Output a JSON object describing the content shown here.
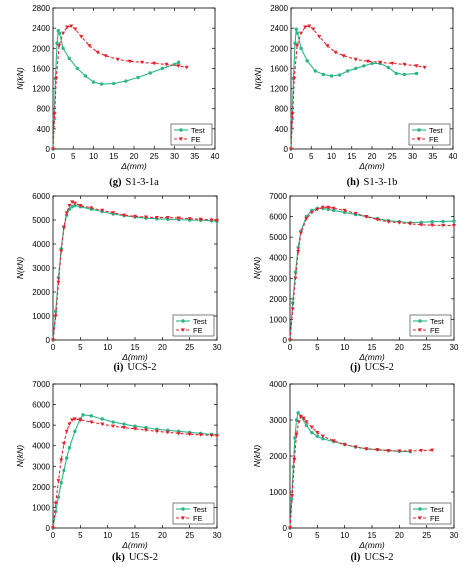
{
  "figure": {
    "colors": {
      "test": "#2ab58a",
      "fe": "#e8202a"
    }
  },
  "chart_data": [
    {
      "type": "line",
      "panel_label": "(g)",
      "caption_text": "S1-3-1a",
      "xlabel": "Δ(mm)",
      "ylabel": "N(kN)",
      "xlim": [
        0,
        40
      ],
      "ylim": [
        0,
        2800
      ],
      "xticks": [
        0,
        5,
        10,
        15,
        20,
        25,
        30,
        35,
        40
      ],
      "yticks": [
        0,
        400,
        800,
        1200,
        1600,
        2000,
        2400,
        2800
      ],
      "legend_position": "bottom-right",
      "series": [
        {
          "name": "Test",
          "x": [
            0,
            0.3,
            0.6,
            1.0,
            1.3,
            1.6,
            2.5,
            4,
            6,
            8,
            10,
            12,
            15,
            18,
            21,
            24,
            27,
            30,
            31
          ],
          "y": [
            0,
            600,
            1400,
            2100,
            2350,
            2300,
            2000,
            1800,
            1600,
            1450,
            1330,
            1290,
            1300,
            1350,
            1420,
            1510,
            1600,
            1680,
            1720
          ]
        },
        {
          "name": "FE",
          "x": [
            0,
            0.4,
            0.8,
            1.5,
            2.5,
            3.5,
            4.5,
            5.5,
            7,
            9,
            11,
            13,
            16,
            19,
            22,
            25,
            28,
            31,
            33
          ],
          "y": [
            0,
            700,
            1400,
            2050,
            2300,
            2420,
            2440,
            2380,
            2230,
            2050,
            1920,
            1850,
            1780,
            1740,
            1720,
            1700,
            1680,
            1650,
            1620
          ]
        }
      ]
    },
    {
      "type": "line",
      "panel_label": "(h)",
      "caption_text": "S1-3-1b",
      "xlabel": "Δ(mm)",
      "ylabel": "N(kN)",
      "xlim": [
        0,
        40
      ],
      "ylim": [
        0,
        2800
      ],
      "xticks": [
        0,
        5,
        10,
        15,
        20,
        25,
        30,
        35,
        40
      ],
      "yticks": [
        0,
        400,
        800,
        1200,
        1600,
        2000,
        2400,
        2800
      ],
      "legend_position": "bottom-right",
      "series": [
        {
          "name": "Test",
          "x": [
            0,
            0.3,
            0.6,
            1.0,
            1.3,
            1.6,
            2.5,
            4,
            6,
            8,
            10,
            12,
            14,
            16,
            18,
            20,
            22,
            24,
            26,
            28,
            31
          ],
          "y": [
            0,
            600,
            1400,
            2100,
            2380,
            2300,
            2000,
            1750,
            1550,
            1480,
            1450,
            1470,
            1550,
            1600,
            1650,
            1700,
            1700,
            1620,
            1500,
            1480,
            1500
          ]
        },
        {
          "name": "FE",
          "x": [
            0,
            0.4,
            0.8,
            1.5,
            2.5,
            3.5,
            4.5,
            5.5,
            7,
            9,
            11,
            13,
            16,
            19,
            22,
            25,
            28,
            31,
            33
          ],
          "y": [
            0,
            700,
            1400,
            2050,
            2300,
            2420,
            2440,
            2380,
            2230,
            2050,
            1920,
            1850,
            1780,
            1740,
            1720,
            1700,
            1680,
            1650,
            1620
          ]
        }
      ]
    },
    {
      "type": "line",
      "panel_label": "(i)",
      "caption_text": "UCS-2",
      "xlabel": "Δ(mm)",
      "ylabel": "N(kN)",
      "xlim": [
        0,
        30
      ],
      "ylim": [
        0,
        6000
      ],
      "xticks": [
        0,
        5,
        10,
        15,
        20,
        25,
        30
      ],
      "yticks": [
        0,
        1000,
        2000,
        3000,
        4000,
        5000,
        6000
      ],
      "legend_position": "bottom-right",
      "series": [
        {
          "name": "Test",
          "x": [
            0,
            0.5,
            1.0,
            1.5,
            2.0,
            2.5,
            3.0,
            3.5,
            4,
            5,
            7,
            9,
            11,
            13,
            15,
            17,
            19,
            21,
            23,
            25,
            27,
            29,
            30
          ],
          "y": [
            0,
            1200,
            2600,
            3800,
            4700,
            5200,
            5450,
            5550,
            5600,
            5550,
            5450,
            5350,
            5250,
            5180,
            5120,
            5080,
            5050,
            5030,
            5010,
            5000,
            4990,
            4970,
            4950
          ]
        },
        {
          "name": "FE",
          "x": [
            0,
            0.5,
            1.0,
            1.5,
            2.0,
            2.5,
            3.0,
            3.5,
            4,
            5,
            7,
            9,
            11,
            13,
            15,
            17,
            19,
            21,
            23,
            25,
            27,
            29,
            30
          ],
          "y": [
            0,
            1000,
            2400,
            3700,
            4700,
            5300,
            5600,
            5750,
            5700,
            5600,
            5500,
            5400,
            5300,
            5200,
            5150,
            5120,
            5100,
            5100,
            5080,
            5050,
            5030,
            5000,
            4980
          ]
        }
      ]
    },
    {
      "type": "line",
      "panel_label": "(j)",
      "caption_text": "UCS-2",
      "xlabel": "Δ(mm)",
      "ylabel": "N(kN)",
      "xlim": [
        0,
        30
      ],
      "ylim": [
        0,
        7000
      ],
      "xticks": [
        0,
        5,
        10,
        15,
        20,
        25,
        30
      ],
      "yticks": [
        0,
        1000,
        2000,
        3000,
        4000,
        5000,
        6000,
        7000
      ],
      "legend_position": "bottom-right",
      "series": [
        {
          "name": "Test",
          "x": [
            0,
            0.5,
            1.0,
            1.5,
            2.0,
            3,
            4,
            5,
            6,
            7,
            8,
            10,
            12,
            14,
            16,
            18,
            20,
            22,
            24,
            26,
            28,
            30
          ],
          "y": [
            0,
            1800,
            3300,
            4500,
            5300,
            6000,
            6300,
            6400,
            6400,
            6350,
            6300,
            6200,
            6100,
            6000,
            5900,
            5800,
            5750,
            5700,
            5720,
            5750,
            5760,
            5780
          ]
        },
        {
          "name": "FE",
          "x": [
            0,
            0.5,
            1.0,
            1.5,
            2.0,
            3,
            4,
            5,
            6,
            7,
            8,
            10,
            12,
            14,
            16,
            18,
            20,
            22,
            24,
            26,
            28,
            30
          ],
          "y": [
            0,
            1500,
            3000,
            4300,
            5200,
            5900,
            6200,
            6350,
            6450,
            6450,
            6400,
            6300,
            6150,
            6000,
            5850,
            5750,
            5700,
            5650,
            5600,
            5580,
            5570,
            5560
          ]
        }
      ]
    },
    {
      "type": "line",
      "panel_label": "(k)",
      "caption_text": "UCS-2",
      "xlabel": "Δ(mm)",
      "ylabel": "N(kN)",
      "xlim": [
        0,
        30
      ],
      "ylim": [
        0,
        7000
      ],
      "xticks": [
        0,
        5,
        10,
        15,
        20,
        25,
        30
      ],
      "yticks": [
        0,
        1000,
        2000,
        3000,
        4000,
        5000,
        6000,
        7000
      ],
      "legend_position": "bottom-right",
      "series": [
        {
          "name": "Test",
          "x": [
            0,
            0.5,
            1.0,
            1.5,
            2.0,
            2.5,
            3,
            4,
            5,
            5.5,
            7,
            9,
            11,
            13,
            15,
            17,
            19,
            21,
            23,
            25,
            27,
            29,
            30
          ],
          "y": [
            0,
            800,
            1500,
            2200,
            2800,
            3400,
            3900,
            4700,
            5300,
            5500,
            5450,
            5300,
            5150,
            5050,
            4950,
            4880,
            4800,
            4750,
            4700,
            4650,
            4600,
            4550,
            4520
          ]
        },
        {
          "name": "FE",
          "x": [
            0,
            0.5,
            1.0,
            1.5,
            2.0,
            2.5,
            3,
            3.5,
            4,
            5,
            7,
            9,
            11,
            13,
            15,
            17,
            19,
            21,
            23,
            25,
            27,
            29,
            30
          ],
          "y": [
            0,
            1200,
            2300,
            3300,
            4100,
            4700,
            5050,
            5250,
            5300,
            5250,
            5150,
            5050,
            4950,
            4880,
            4820,
            4760,
            4700,
            4650,
            4600,
            4560,
            4530,
            4500,
            4480
          ]
        }
      ]
    },
    {
      "type": "line",
      "panel_label": "(l)",
      "caption_text": "UCS-2",
      "xlabel": "Δ(mm)",
      "ylabel": "N(kN)",
      "xlim": [
        0,
        30
      ],
      "ylim": [
        0,
        4000
      ],
      "xticks": [
        0,
        5,
        10,
        15,
        20,
        25,
        30
      ],
      "yticks": [
        0,
        1000,
        2000,
        3000,
        4000
      ],
      "legend_position": "bottom-right",
      "series": [
        {
          "name": "Test",
          "x": [
            0,
            0.3,
            0.6,
            0.9,
            1.2,
            1.5,
            2,
            3,
            4,
            5,
            6,
            8,
            10,
            12,
            14,
            16,
            18,
            20,
            22
          ],
          "y": [
            0,
            800,
            1700,
            2500,
            3000,
            3200,
            3100,
            2850,
            2650,
            2550,
            2480,
            2400,
            2320,
            2250,
            2200,
            2180,
            2150,
            2130,
            2120
          ]
        },
        {
          "name": "FE",
          "x": [
            0,
            0.4,
            0.8,
            1.2,
            1.6,
            2,
            2.5,
            3,
            4,
            5,
            6,
            8,
            10,
            12,
            14,
            16,
            18,
            20,
            22,
            24,
            26
          ],
          "y": [
            0,
            900,
            1900,
            2600,
            2950,
            3100,
            3050,
            2950,
            2800,
            2650,
            2550,
            2420,
            2320,
            2250,
            2200,
            2170,
            2150,
            2140,
            2140,
            2150,
            2160
          ]
        }
      ]
    }
  ]
}
